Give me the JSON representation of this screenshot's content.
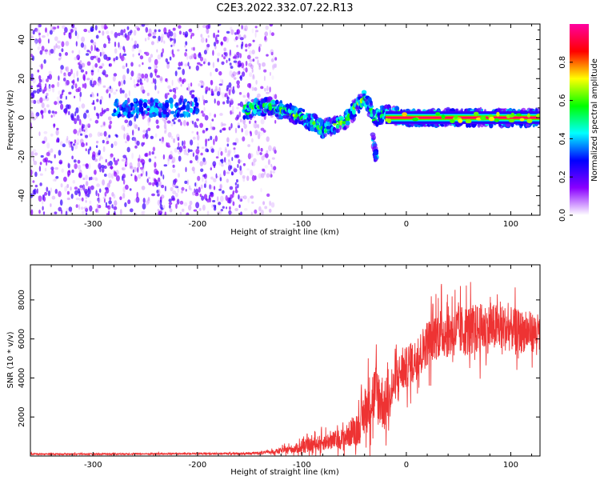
{
  "title": "C2E3.2022.332.07.22.R13",
  "chart_data": [
    {
      "type": "heatmap",
      "title": "",
      "xlabel": "Height of straight line (km)",
      "ylabel": "Frequency (Hz)",
      "xlim": [
        -360,
        128
      ],
      "ylim": [
        -50,
        48
      ],
      "xticks": [
        -300,
        -200,
        -100,
        0,
        100
      ],
      "yticks": [
        -40,
        -20,
        0,
        20,
        40
      ],
      "xtick_labels": [
        "-300",
        "-200",
        "-100",
        "0",
        "100"
      ],
      "ytick_labels": [
        "-40",
        "-20",
        "0",
        "20",
        "40"
      ],
      "colorbar": {
        "label": "Normalized spectral amplitude",
        "range": [
          0,
          1
        ],
        "ticks": [
          0.0,
          0.2,
          0.4,
          0.6,
          0.8
        ],
        "tick_labels": [
          "0.0",
          "0.2",
          "0.4",
          "0.6",
          "0.8"
        ],
        "colors": [
          "#ffffff",
          "#8a00ff",
          "#0000ff",
          "#00ffff",
          "#00ff00",
          "#ffff00",
          "#ff0000",
          "#ff00a0"
        ]
      },
      "features": [
        {
          "kind": "broadband_noise",
          "x_range": [
            -360,
            -155
          ],
          "f_range": [
            -50,
            48
          ],
          "amplitude": 0.15
        },
        {
          "kind": "sparse_noise",
          "x_range": [
            -155,
            -125
          ],
          "f_range": [
            -50,
            48
          ],
          "amplitude": 0.1
        },
        {
          "kind": "band",
          "x_range": [
            -280,
            -200
          ],
          "f_center": 5,
          "f_width": 8,
          "amplitude": 0.3
        },
        {
          "kind": "ridge",
          "points": [
            [
              -155,
              4
            ],
            [
              -130,
              6
            ],
            [
              -110,
              2
            ],
            [
              -90,
              -2
            ],
            [
              -80,
              -6
            ],
            [
              -70,
              -4
            ],
            [
              -60,
              -2
            ],
            [
              -50,
              4
            ],
            [
              -40,
              10
            ],
            [
              -30,
              0
            ],
            [
              -20,
              2
            ],
            [
              -10,
              1
            ],
            [
              0,
              0
            ],
            [
              128,
              0
            ]
          ],
          "amplitude": 0.6
        },
        {
          "kind": "branch",
          "points": [
            [
              -33,
              -12
            ],
            [
              -30,
              -18
            ],
            [
              -28,
              -22
            ]
          ],
          "amplitude": 0.45
        },
        {
          "kind": "carrier",
          "x_range": [
            -20,
            128
          ],
          "f_center": 0,
          "amplitude": 0.95
        }
      ]
    },
    {
      "type": "line",
      "title": "",
      "xlabel": "Height of straight line (km)",
      "ylabel": "SNR (10 * v/v)",
      "xlim": [
        -360,
        128
      ],
      "ylim": [
        0,
        9800
      ],
      "xticks": [
        -300,
        -200,
        -100,
        0,
        100
      ],
      "yticks": [
        2000,
        4000,
        6000,
        8000
      ],
      "xtick_labels": [
        "-300",
        "-200",
        "-100",
        "0",
        "100"
      ],
      "ytick_labels": [
        "2000",
        "4000",
        "6000",
        "8000"
      ],
      "series": [
        {
          "name": "SNR",
          "color": "#ee3333",
          "envelope_x": [
            -360,
            -300,
            -200,
            -150,
            -130,
            -110,
            -100,
            -80,
            -60,
            -45,
            -40,
            -35,
            -30,
            -25,
            -20,
            -15,
            -10,
            -5,
            0,
            10,
            20,
            30,
            50,
            70,
            90,
            110,
            128
          ],
          "envelope_base": [
            100,
            100,
            120,
            130,
            200,
            350,
            450,
            700,
            900,
            1500,
            2200,
            2800,
            3200,
            3000,
            2500,
            3000,
            4000,
            4300,
            4500,
            5000,
            5800,
            6300,
            6400,
            6500,
            6600,
            6400,
            6300
          ],
          "envelope_spread": [
            60,
            60,
            60,
            80,
            150,
            350,
            500,
            700,
            900,
            1500,
            2000,
            2400,
            2600,
            2600,
            2200,
            1500,
            1800,
            1800,
            1800,
            1800,
            2000,
            2200,
            2200,
            2200,
            2000,
            1800,
            1600
          ]
        }
      ]
    }
  ]
}
